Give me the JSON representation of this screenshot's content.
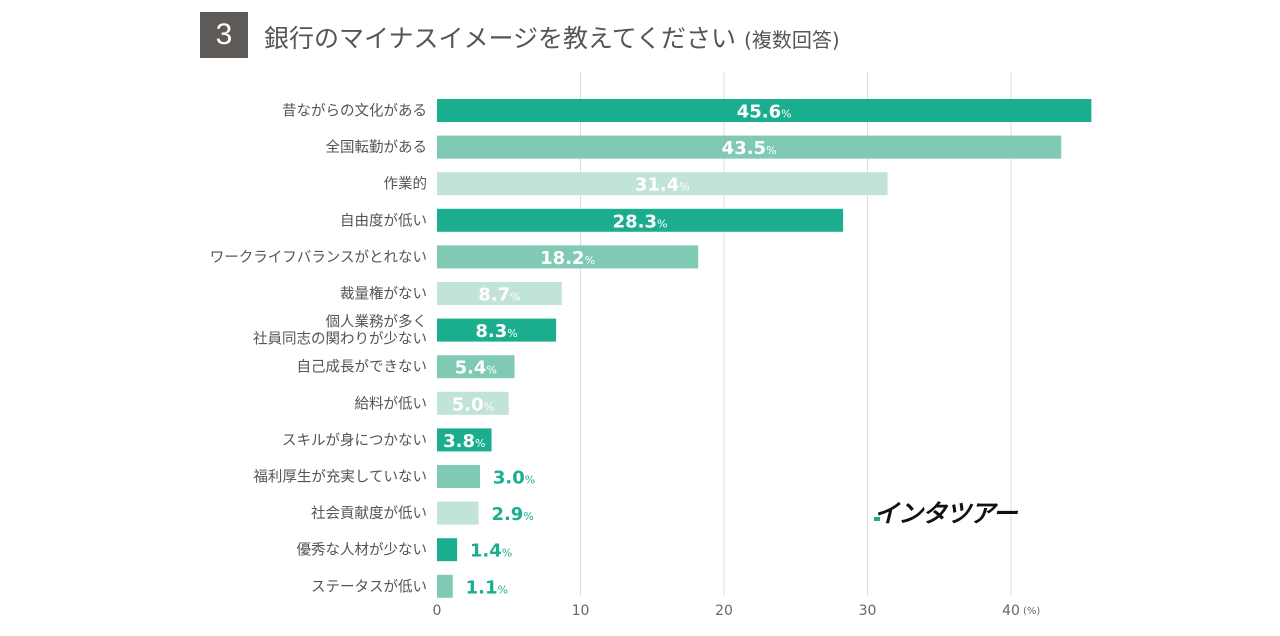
{
  "header": {
    "number": "3",
    "title": "銀行のマイナスイメージを教えてください",
    "subtitle": "(複数回答)"
  },
  "logo": {
    "text": "インタツアー"
  },
  "colors": {
    "dark": "#1aae8f",
    "mid": "#7fc9b5",
    "light": "#c2e3d8",
    "label_out": "#1aae8f",
    "grid": "#dddddd",
    "axis_text": "#666666",
    "category_text": "#555555"
  },
  "chart_data": {
    "type": "bar",
    "orientation": "horizontal",
    "title": "銀行のマイナスイメージを教えてください (複数回答)",
    "categories": [
      "昔ながらの文化がある",
      "全国転勤がある",
      "作業的",
      "自由度が低い",
      "ワークライフバランスがとれない",
      "裁量権がない",
      "個人業務が多く\n社員同志の関わりが少ない",
      "自己成長ができない",
      "給料が低い",
      "スキルが身につかない",
      "福利厚生が充実していない",
      "社会貢献度が低い",
      "優秀な人材が少ない",
      "ステータスが低い"
    ],
    "values": [
      45.6,
      43.5,
      31.4,
      28.3,
      18.2,
      8.7,
      8.3,
      5.4,
      5.0,
      3.8,
      3.0,
      2.9,
      1.4,
      1.1
    ],
    "value_labels": [
      "45.6",
      "43.5",
      "31.4",
      "28.3",
      "18.2",
      "8.7",
      "8.3",
      "5.4",
      "5.0",
      "3.8",
      "3.0",
      "2.9",
      "1.4",
      "1.1"
    ],
    "unit_suffix": "%",
    "bar_shades": [
      "dark",
      "mid",
      "light",
      "dark",
      "mid",
      "light",
      "dark",
      "mid",
      "light",
      "dark",
      "mid",
      "light",
      "dark",
      "mid"
    ],
    "label_inside": [
      true,
      true,
      true,
      true,
      true,
      true,
      true,
      true,
      true,
      true,
      false,
      false,
      false,
      false
    ],
    "xlim": [
      0,
      45
    ],
    "xticks": [
      0,
      10,
      20,
      30,
      40
    ],
    "x_unit_label": "(%)",
    "grid": true
  }
}
